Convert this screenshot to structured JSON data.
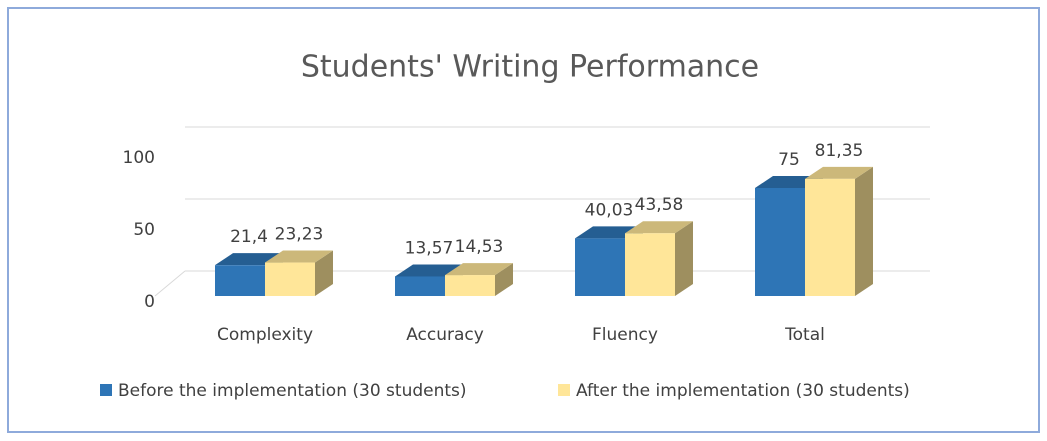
{
  "chart_data": {
    "type": "bar",
    "title": "Students' Writing Performance",
    "categories": [
      "Complexity",
      "Accuracy",
      "Fluency",
      "Total"
    ],
    "series": [
      {
        "name": "Before the implementation (30 students)",
        "color": "#2e75b6",
        "values": [
          21.4,
          13.57,
          40.03,
          75
        ],
        "value_labels": [
          "21,4",
          "13,57",
          "40,03",
          "75"
        ]
      },
      {
        "name": "After the implementation (30 students)",
        "color": "#ffe699",
        "values": [
          23.23,
          14.53,
          43.58,
          81.35
        ],
        "value_labels": [
          "23,23",
          "14,53",
          "43,58",
          "81,35"
        ]
      }
    ],
    "ylim": [
      0,
      100
    ],
    "yticks": [
      0,
      50,
      100
    ],
    "grid": true,
    "legend": "bottom"
  }
}
